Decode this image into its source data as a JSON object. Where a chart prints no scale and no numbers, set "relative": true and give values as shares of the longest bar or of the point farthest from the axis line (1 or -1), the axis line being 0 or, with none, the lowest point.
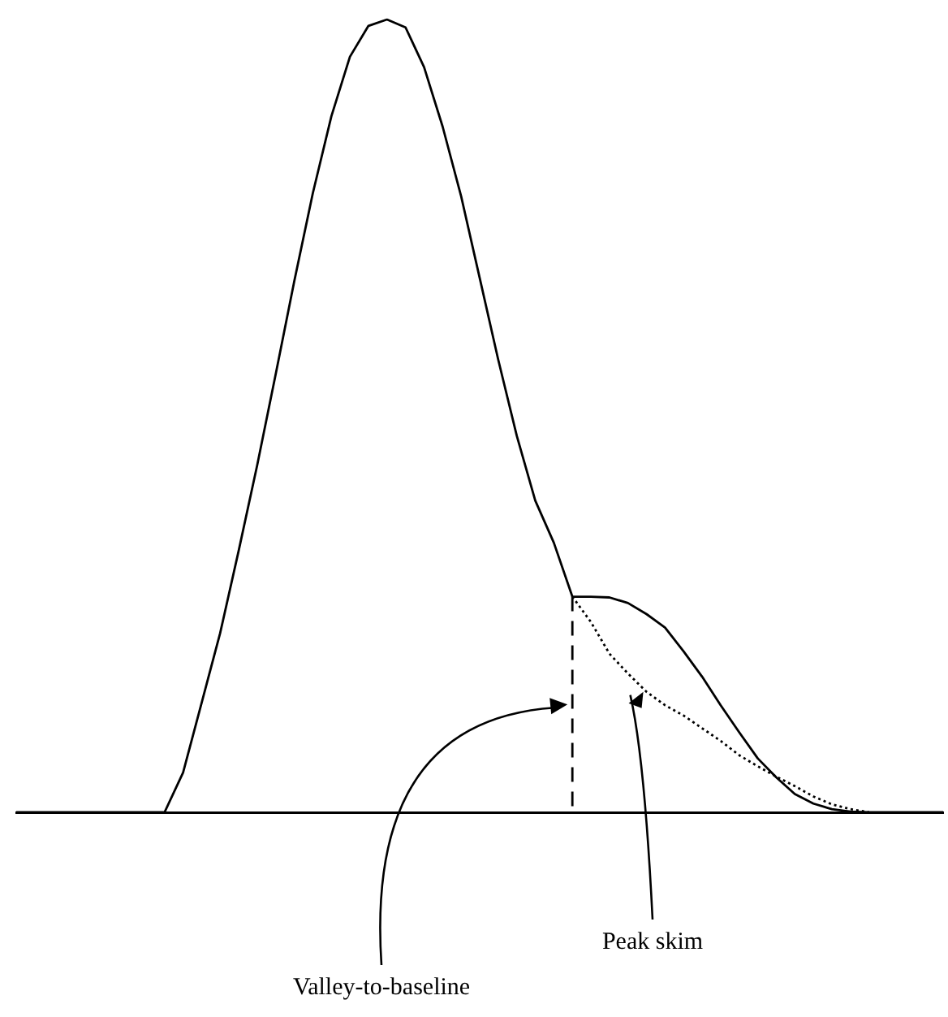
{
  "chart_data": {
    "type": "line",
    "relative": true,
    "grid": false,
    "legend": false,
    "marker": "none",
    "categories": [
      null,
      null,
      null,
      null,
      null,
      null,
      null,
      null,
      null,
      null,
      null,
      null,
      null,
      null,
      null,
      null,
      null,
      null,
      null,
      null,
      null,
      null,
      null,
      null,
      null,
      null,
      null,
      null,
      null,
      null,
      null,
      null,
      null,
      null,
      null,
      null,
      null,
      null,
      null,
      null,
      null,
      null,
      null,
      null,
      null,
      null,
      null,
      null,
      null,
      null,
      null
    ],
    "series": [
      {
        "color": "#000000",
        "line_style": "solid",
        "values": [
          0,
          0,
          0,
          0,
          0,
          0,
          0,
          0,
          0,
          0.05,
          0.138,
          0.226,
          0.33,
          0.438,
          0.553,
          0.67,
          0.781,
          0.878,
          0.953,
          0.992,
          1,
          0.99,
          0.94,
          0.865,
          0.777,
          0.674,
          0.571,
          0.475,
          0.393,
          0.34,
          0.272,
          0.272,
          0.271,
          0.264,
          0.25,
          0.233,
          0.203,
          0.171,
          0.135,
          0.101,
          0.068,
          0.044,
          0.023,
          0.011,
          0.004,
          0.001,
          0,
          0,
          0,
          0,
          0
        ]
      },
      {
        "color": "#000000",
        "line_style": "dotted",
        "values": [
          null,
          null,
          null,
          null,
          null,
          null,
          null,
          null,
          null,
          null,
          null,
          null,
          null,
          null,
          null,
          null,
          null,
          null,
          null,
          null,
          null,
          null,
          null,
          null,
          null,
          null,
          null,
          null,
          null,
          null,
          0.272,
          0.24,
          0.2,
          0.175,
          0.152,
          0.135,
          0.122,
          0.106,
          0.09,
          0.072,
          0.058,
          0.045,
          0.033,
          0.02,
          0.01,
          0.004,
          0,
          null,
          null,
          null,
          null
        ]
      }
    ],
    "annotations": [
      "Valley-to-baseline",
      "Peak skim"
    ]
  }
}
